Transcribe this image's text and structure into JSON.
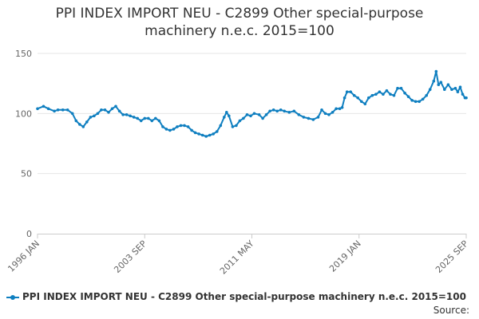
{
  "title_lines": [
    "PPI INDEX IMPORT NEU - C2899 Other special-purpose",
    "machinery n.e.c. 2015=100"
  ],
  "source_label": "Source:",
  "colors": {
    "series": "#0f7fc0",
    "grid": "#e6e6e6",
    "axis": "#cccccc",
    "text": "#333333",
    "tick_text": "#666666"
  },
  "chart_data": {
    "type": "line",
    "title": "PPI INDEX IMPORT NEU - C2899 Other special-purpose machinery n.e.c. 2015=100",
    "xlabel": "",
    "ylabel": "",
    "x_range": [
      "1996-01",
      "2025-09"
    ],
    "ylim": [
      0,
      150
    ],
    "y_ticks": [
      0,
      50,
      100,
      150
    ],
    "x_tick_labels": [
      "1996 JAN",
      "2003 SEP",
      "2011 MAY",
      "2019 JAN",
      "2025 SEP"
    ],
    "grid": "horizontal",
    "legend_position": "bottom",
    "series": [
      {
        "name": "PPI INDEX IMPORT NEU - C2899 Other special-purpose machinery n.e.c. 2015=100",
        "points": [
          [
            "1996-01",
            104
          ],
          [
            "1996-06",
            106
          ],
          [
            "1996-10",
            104
          ],
          [
            "1997-03",
            102
          ],
          [
            "1997-06",
            103
          ],
          [
            "1997-10",
            103
          ],
          [
            "1998-02",
            103
          ],
          [
            "1998-06",
            100
          ],
          [
            "1998-09",
            94
          ],
          [
            "1998-12",
            91
          ],
          [
            "1999-03",
            89
          ],
          [
            "1999-06",
            93
          ],
          [
            "1999-09",
            97
          ],
          [
            "1999-12",
            98
          ],
          [
            "2000-03",
            100
          ],
          [
            "2000-06",
            103
          ],
          [
            "2000-09",
            103
          ],
          [
            "2000-12",
            101
          ],
          [
            "2001-03",
            104
          ],
          [
            "2001-06",
            106
          ],
          [
            "2001-09",
            102
          ],
          [
            "2001-12",
            99
          ],
          [
            "2002-03",
            99
          ],
          [
            "2002-06",
            98
          ],
          [
            "2002-09",
            97
          ],
          [
            "2002-12",
            96
          ],
          [
            "2003-03",
            94
          ],
          [
            "2003-06",
            96
          ],
          [
            "2003-09",
            96
          ],
          [
            "2003-12",
            94
          ],
          [
            "2004-03",
            96
          ],
          [
            "2004-06",
            94
          ],
          [
            "2004-09",
            89
          ],
          [
            "2004-12",
            87
          ],
          [
            "2005-03",
            86
          ],
          [
            "2005-06",
            87
          ],
          [
            "2005-09",
            89
          ],
          [
            "2005-12",
            90
          ],
          [
            "2006-03",
            90
          ],
          [
            "2006-06",
            89
          ],
          [
            "2006-09",
            86
          ],
          [
            "2006-12",
            84
          ],
          [
            "2007-03",
            83
          ],
          [
            "2007-06",
            82
          ],
          [
            "2007-09",
            81
          ],
          [
            "2007-12",
            82
          ],
          [
            "2008-03",
            83
          ],
          [
            "2008-06",
            85
          ],
          [
            "2008-09",
            90
          ],
          [
            "2008-12",
            97
          ],
          [
            "2009-02",
            101
          ],
          [
            "2009-04",
            98
          ],
          [
            "2009-07",
            89
          ],
          [
            "2009-10",
            90
          ],
          [
            "2010-01",
            94
          ],
          [
            "2010-04",
            96
          ],
          [
            "2010-07",
            99
          ],
          [
            "2010-10",
            98
          ],
          [
            "2011-01",
            100
          ],
          [
            "2011-05",
            99
          ],
          [
            "2011-08",
            96
          ],
          [
            "2011-11",
            99
          ],
          [
            "2012-02",
            102
          ],
          [
            "2012-05",
            103
          ],
          [
            "2012-08",
            102
          ],
          [
            "2012-11",
            103
          ],
          [
            "2013-02",
            102
          ],
          [
            "2013-06",
            101
          ],
          [
            "2013-10",
            102
          ],
          [
            "2014-02",
            99
          ],
          [
            "2014-06",
            97
          ],
          [
            "2014-10",
            96
          ],
          [
            "2015-02",
            95
          ],
          [
            "2015-06",
            97
          ],
          [
            "2015-09",
            103
          ],
          [
            "2015-12",
            100
          ],
          [
            "2016-03",
            99
          ],
          [
            "2016-06",
            101
          ],
          [
            "2016-09",
            104
          ],
          [
            "2016-12",
            104
          ],
          [
            "2017-02",
            105
          ],
          [
            "2017-04",
            113
          ],
          [
            "2017-06",
            118
          ],
          [
            "2017-09",
            118
          ],
          [
            "2017-12",
            115
          ],
          [
            "2018-03",
            113
          ],
          [
            "2018-06",
            110
          ],
          [
            "2018-09",
            108
          ],
          [
            "2018-12",
            113
          ],
          [
            "2019-03",
            115
          ],
          [
            "2019-06",
            116
          ],
          [
            "2019-09",
            118
          ],
          [
            "2019-12",
            116
          ],
          [
            "2020-03",
            119
          ],
          [
            "2020-06",
            116
          ],
          [
            "2020-09",
            115
          ],
          [
            "2020-12",
            121
          ],
          [
            "2021-03",
            121
          ],
          [
            "2021-06",
            117
          ],
          [
            "2021-09",
            114
          ],
          [
            "2021-12",
            111
          ],
          [
            "2022-03",
            110
          ],
          [
            "2022-06",
            110
          ],
          [
            "2022-09",
            112
          ],
          [
            "2022-12",
            115
          ],
          [
            "2023-03",
            120
          ],
          [
            "2023-06",
            127
          ],
          [
            "2023-08",
            135
          ],
          [
            "2023-10",
            124
          ],
          [
            "2023-12",
            126
          ],
          [
            "2024-03",
            120
          ],
          [
            "2024-06",
            124
          ],
          [
            "2024-09",
            120
          ],
          [
            "2024-12",
            121
          ],
          [
            "2025-02",
            118
          ],
          [
            "2025-04",
            122
          ],
          [
            "2025-06",
            116
          ],
          [
            "2025-08",
            113
          ],
          [
            "2025-09",
            113
          ]
        ]
      }
    ]
  }
}
